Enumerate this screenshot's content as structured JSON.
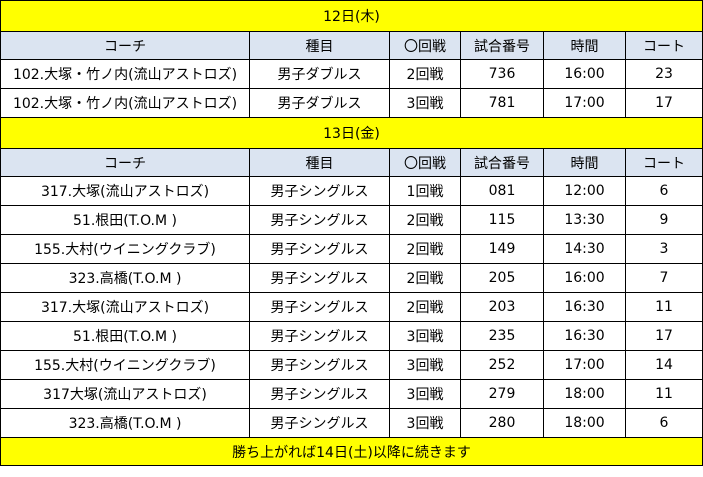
{
  "headers": [
    "コーチ",
    "種目",
    "〇回戦",
    "試合番号",
    "時間",
    "コート"
  ],
  "days": [
    {
      "label": "12日(木)",
      "rows": [
        {
          "coach": "102.大塚・竹ノ内(流山アストロズ)",
          "event": "男子ダブルス",
          "round": "2回戦",
          "match": "736",
          "time": "16:00",
          "court": "23"
        },
        {
          "coach": "102.大塚・竹ノ内(流山アストロズ)",
          "event": "男子ダブルス",
          "round": "3回戦",
          "match": "781",
          "time": "17:00",
          "court": "17"
        }
      ]
    },
    {
      "label": "13日(金)",
      "rows": [
        {
          "coach": "317.大塚(流山アストロズ)",
          "event": "男子シングルス",
          "round": "1回戦",
          "match": "081",
          "time": "12:00",
          "court": "6"
        },
        {
          "coach": "51.根田(T.O.M )",
          "event": "男子シングルス",
          "round": "2回戦",
          "match": "115",
          "time": "13:30",
          "court": "9"
        },
        {
          "coach": "155.大村(ウイニングクラブ)",
          "event": "男子シングルス",
          "round": "2回戦",
          "match": "149",
          "time": "14:30",
          "court": "3"
        },
        {
          "coach": "323.高橋(T.O.M )",
          "event": "男子シングルス",
          "round": "2回戦",
          "match": "205",
          "time": "16:00",
          "court": "7"
        },
        {
          "coach": "317.大塚(流山アストロズ)",
          "event": "男子シングルス",
          "round": "2回戦",
          "match": "203",
          "time": "16:30",
          "court": "11"
        },
        {
          "coach": "51.根田(T.O.M )",
          "event": "男子シングルス",
          "round": "3回戦",
          "match": "235",
          "time": "16:30",
          "court": "17"
        },
        {
          "coach": "155.大村(ウイニングクラブ)",
          "event": "男子シングルス",
          "round": "3回戦",
          "match": "252",
          "time": "17:00",
          "court": "14"
        },
        {
          "coach": "317大塚(流山アストロズ)",
          "event": "男子シングルス",
          "round": "3回戦",
          "match": "279",
          "time": "18:00",
          "court": "11"
        },
        {
          "coach": "323.高橋(T.O.M )",
          "event": "男子シングルス",
          "round": "3回戦",
          "match": "280",
          "time": "18:00",
          "court": "6"
        }
      ]
    }
  ],
  "footer": "勝ち上がれば14日(土)以降に続きます",
  "colors": {
    "day_band": "#ffff00",
    "header_band": "#dbe4f1",
    "border": "#000000"
  }
}
